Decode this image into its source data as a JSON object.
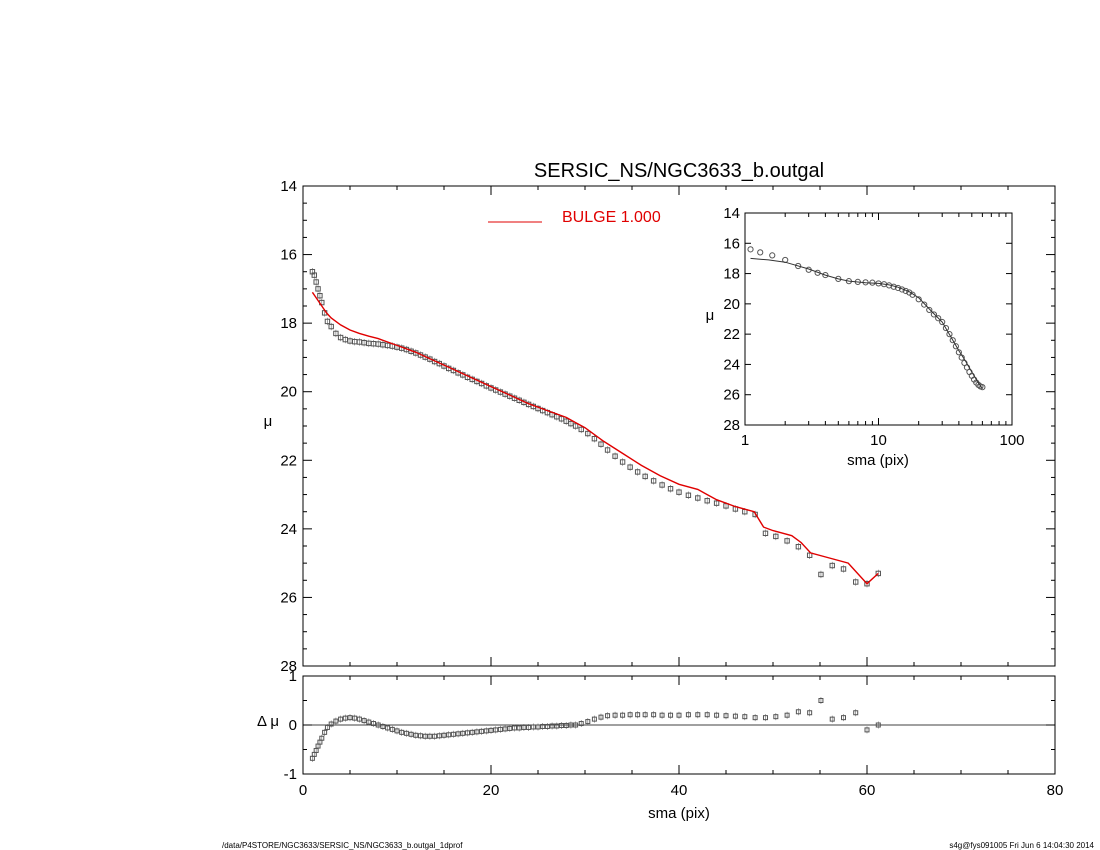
{
  "chart_data": [
    {
      "type": "scatter",
      "panel": "main",
      "title": "SERSIC_NS/NGC3633_b.outgal",
      "xlabel": "",
      "ylabel": "μ",
      "xlim": [
        0,
        80
      ],
      "ylim": [
        28,
        14
      ],
      "y_inverted": true,
      "xticks": [
        "0",
        "20",
        "40",
        "60",
        "80"
      ],
      "yticks": [
        "14",
        "16",
        "18",
        "20",
        "22",
        "24",
        "26",
        "28"
      ],
      "legend": {
        "entries": [
          {
            "label": "BULGE  1.000",
            "color": "#e00000"
          }
        ],
        "placement": "top-center"
      },
      "series": [
        {
          "kind": "points",
          "marker": "square",
          "color": "#555555",
          "x": [
            1.0,
            1.2,
            1.4,
            1.6,
            1.8,
            2.0,
            2.3,
            2.6,
            3.0,
            3.5,
            4.0,
            4.5,
            5.0,
            5.5,
            6.0,
            6.5,
            7.0,
            7.5,
            8.0,
            8.5,
            9.0,
            9.5,
            10.0,
            10.5,
            11.0,
            11.5,
            12.0,
            12.5,
            13.0,
            13.5,
            14.0,
            14.5,
            15.0,
            15.5,
            16.0,
            16.5,
            17.0,
            17.5,
            18.0,
            18.5,
            19.0,
            19.5,
            20.0,
            20.5,
            21.0,
            21.5,
            22.0,
            22.5,
            23.0,
            23.5,
            24.0,
            24.5,
            25.0,
            25.5,
            26.0,
            26.5,
            27.0,
            27.5,
            28.0,
            28.5,
            29.0,
            29.6,
            30.3,
            31.0,
            31.7,
            32.4,
            33.2,
            34.0,
            34.8,
            35.6,
            36.4,
            37.3,
            38.2,
            39.1,
            40.0,
            41.0,
            42.0,
            43.0,
            44.0,
            45.0,
            46.0,
            47.0,
            48.1,
            49.2,
            50.3,
            51.5,
            52.7,
            53.9,
            55.1,
            56.3,
            57.5,
            58.8,
            60.0,
            61.2
          ],
          "y": [
            16.5,
            16.6,
            16.8,
            17.0,
            17.2,
            17.4,
            17.7,
            17.95,
            18.1,
            18.3,
            18.42,
            18.48,
            18.52,
            18.54,
            18.55,
            18.57,
            18.59,
            18.6,
            18.61,
            18.63,
            18.65,
            18.67,
            18.7,
            18.73,
            18.77,
            18.82,
            18.87,
            18.93,
            18.99,
            19.05,
            19.12,
            19.18,
            19.25,
            19.32,
            19.38,
            19.45,
            19.51,
            19.58,
            19.64,
            19.7,
            19.76,
            19.83,
            19.89,
            19.95,
            20.01,
            20.07,
            20.13,
            20.19,
            20.25,
            20.31,
            20.37,
            20.43,
            20.49,
            20.55,
            20.61,
            20.67,
            20.73,
            20.79,
            20.86,
            20.93,
            21.0,
            21.1,
            21.22,
            21.37,
            21.53,
            21.7,
            21.88,
            22.05,
            22.2,
            22.34,
            22.47,
            22.6,
            22.72,
            22.83,
            22.93,
            23.02,
            23.1,
            23.18,
            23.25,
            23.33,
            23.42,
            23.5,
            23.58,
            24.13,
            24.22,
            24.35,
            24.52,
            24.77,
            25.33,
            25.07,
            25.17,
            25.55,
            25.6,
            25.3
          ]
        },
        {
          "kind": "line",
          "name": "BULGE  1.000",
          "color": "#e00000",
          "x": [
            1.0,
            1.5,
            2.0,
            2.5,
            3.0,
            4.0,
            5.0,
            6.0,
            7.0,
            8.0,
            9.0,
            10.0,
            12.0,
            14.0,
            16.0,
            18.0,
            20.0,
            22.0,
            24.0,
            26.0,
            28.0,
            29.0,
            30.0,
            32.0,
            34.0,
            36.0,
            38.0,
            40.0,
            42.0,
            43.0,
            44.0,
            46.0,
            48.0,
            49.0,
            50.0,
            52.0,
            53.0,
            54.0,
            56.0,
            58.0,
            60.0,
            61.2
          ],
          "y": [
            17.1,
            17.3,
            17.5,
            17.7,
            17.85,
            18.05,
            18.2,
            18.3,
            18.38,
            18.45,
            18.55,
            18.65,
            18.85,
            19.1,
            19.35,
            19.6,
            19.85,
            20.1,
            20.35,
            20.55,
            20.75,
            20.9,
            21.05,
            21.45,
            21.8,
            22.15,
            22.45,
            22.7,
            22.85,
            23.0,
            23.15,
            23.35,
            23.5,
            23.95,
            24.05,
            24.2,
            24.4,
            24.7,
            24.85,
            25.0,
            25.6,
            25.3
          ]
        }
      ]
    },
    {
      "type": "scatter",
      "panel": "residual",
      "xlabel": "sma (pix)",
      "ylabel": "Δ μ",
      "xlim": [
        0,
        80
      ],
      "ylim": [
        -1,
        1
      ],
      "xticks": [
        "0",
        "20",
        "40",
        "60",
        "80"
      ],
      "yticks": [
        "1",
        "0",
        "-1"
      ],
      "reference_line": 0,
      "series": [
        {
          "kind": "points",
          "marker": "square",
          "color": "#555555",
          "x": [
            1.0,
            1.2,
            1.4,
            1.6,
            1.8,
            2.0,
            2.3,
            2.6,
            3.0,
            3.5,
            4.0,
            4.5,
            5.0,
            5.5,
            6.0,
            6.5,
            7.0,
            7.5,
            8.0,
            8.5,
            9.0,
            9.5,
            10.0,
            10.5,
            11.0,
            11.5,
            12.0,
            12.5,
            13.0,
            13.5,
            14.0,
            14.5,
            15.0,
            15.5,
            16.0,
            16.5,
            17.0,
            17.5,
            18.0,
            18.5,
            19.0,
            19.5,
            20.0,
            20.5,
            21.0,
            21.5,
            22.0,
            22.5,
            23.0,
            23.5,
            24.0,
            24.5,
            25.0,
            25.5,
            26.0,
            26.5,
            27.0,
            27.5,
            28.0,
            28.5,
            29.0,
            29.6,
            30.3,
            31.0,
            31.7,
            32.4,
            33.2,
            34.0,
            34.8,
            35.6,
            36.4,
            37.3,
            38.2,
            39.1,
            40.0,
            41.0,
            42.0,
            43.0,
            44.0,
            45.0,
            46.0,
            47.0,
            48.1,
            49.2,
            50.3,
            51.5,
            52.7,
            53.9,
            55.1,
            56.3,
            57.5,
            58.8,
            60.0,
            61.2
          ],
          "y": [
            -0.68,
            -0.6,
            -0.52,
            -0.43,
            -0.35,
            -0.27,
            -0.15,
            -0.05,
            0.02,
            0.08,
            0.12,
            0.14,
            0.15,
            0.14,
            0.12,
            0.09,
            0.06,
            0.03,
            0.0,
            -0.03,
            -0.06,
            -0.09,
            -0.12,
            -0.15,
            -0.17,
            -0.19,
            -0.21,
            -0.22,
            -0.23,
            -0.23,
            -0.23,
            -0.22,
            -0.21,
            -0.2,
            -0.19,
            -0.18,
            -0.17,
            -0.16,
            -0.15,
            -0.14,
            -0.13,
            -0.12,
            -0.11,
            -0.1,
            -0.09,
            -0.08,
            -0.07,
            -0.06,
            -0.06,
            -0.05,
            -0.05,
            -0.04,
            -0.04,
            -0.03,
            -0.03,
            -0.02,
            -0.02,
            -0.01,
            -0.01,
            0.0,
            0.0,
            0.03,
            0.07,
            0.12,
            0.16,
            0.19,
            0.2,
            0.2,
            0.21,
            0.21,
            0.21,
            0.21,
            0.2,
            0.2,
            0.2,
            0.21,
            0.21,
            0.21,
            0.2,
            0.19,
            0.18,
            0.17,
            0.15,
            0.15,
            0.17,
            0.2,
            0.27,
            0.25,
            0.5,
            0.12,
            0.15,
            0.25,
            -0.1,
            0.0
          ]
        }
      ]
    },
    {
      "type": "line",
      "panel": "inset",
      "xlabel": "sma (pix)",
      "ylabel": "μ",
      "xscale": "log",
      "xlim": [
        1,
        100
      ],
      "ylim": [
        28,
        14
      ],
      "y_inverted": true,
      "xticks": [
        "1",
        "10",
        "100"
      ],
      "yticks": [
        "14",
        "16",
        "18",
        "20",
        "22",
        "24",
        "26",
        "28"
      ],
      "series": [
        {
          "kind": "points",
          "marker": "circle",
          "color": "#555555",
          "x": [
            1.1,
            1.3,
            1.6,
            2.0,
            2.5,
            3.0,
            3.5,
            4.0,
            5.0,
            6.0,
            7.0,
            8.0,
            9.0,
            10.0,
            11.0,
            12.0,
            13.0,
            14.0,
            15.0,
            16.0,
            17.0,
            18.0,
            20.0,
            22.0,
            24.0,
            26.0,
            28.0,
            30.0,
            32.0,
            34.0,
            36.0,
            38.0,
            40.0,
            42.0,
            44.0,
            46.0,
            48.0,
            50.0,
            52.0,
            54.0,
            56.0,
            58.0,
            60.0
          ],
          "y": [
            16.4,
            16.6,
            16.8,
            17.1,
            17.5,
            17.75,
            17.95,
            18.1,
            18.35,
            18.5,
            18.55,
            18.58,
            18.6,
            18.65,
            18.7,
            18.78,
            18.87,
            18.95,
            19.05,
            19.15,
            19.25,
            19.4,
            19.7,
            20.05,
            20.4,
            20.7,
            20.95,
            21.2,
            21.6,
            22.0,
            22.4,
            22.8,
            23.2,
            23.55,
            23.9,
            24.2,
            24.5,
            24.75,
            25.0,
            25.2,
            25.35,
            25.45,
            25.5
          ]
        },
        {
          "kind": "line",
          "color": "#555555",
          "x": [
            1.1,
            1.5,
            2.0,
            3.0,
            4.0,
            5.0,
            6.0,
            8.0,
            10.0,
            12.0,
            14.0,
            17.0,
            20.0,
            25.0,
            30.0,
            35.0,
            40.0,
            45.0,
            50.0,
            55.0,
            60.0
          ],
          "y": [
            17.0,
            17.1,
            17.25,
            17.7,
            18.1,
            18.35,
            18.5,
            18.6,
            18.65,
            18.75,
            18.9,
            19.2,
            19.6,
            20.5,
            21.2,
            22.2,
            23.1,
            23.8,
            24.5,
            25.1,
            25.6
          ]
        }
      ]
    }
  ],
  "footer": {
    "path": "/data/P4STORE/NGC3633/SERSIC_NS/NGC3633_b.outgal_1dprof",
    "stamp": "s4g@fys091005  Fri Jun  6 14:04:30 2014"
  }
}
